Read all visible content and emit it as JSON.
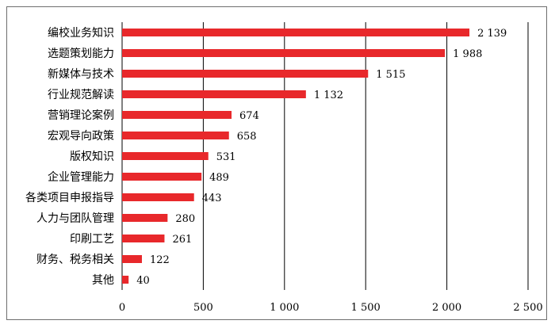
{
  "chart_data": {
    "type": "bar",
    "orientation": "horizontal",
    "title": "",
    "xlabel": "",
    "ylabel": "",
    "categories": [
      "编校业务知识",
      "选题策划能力",
      "新媒体与技术",
      "行业规范解读",
      "营销理论案例",
      "宏观导向政策",
      "版权知识",
      "企业管理能力",
      "各类项目申报指导",
      "人力与团队管理",
      "印刷工艺",
      "财务、税务相关",
      "其他"
    ],
    "values": [
      2139,
      1988,
      1515,
      1132,
      674,
      658,
      531,
      489,
      443,
      280,
      261,
      122,
      40
    ],
    "value_labels": [
      "2 139",
      "1 988",
      "1 515",
      "1 132",
      "674",
      "658",
      "531",
      "489",
      "443",
      "280",
      "261",
      "122",
      "40"
    ],
    "xlim": [
      0,
      2500
    ],
    "x_ticks": [
      0,
      500,
      1000,
      1500,
      2000,
      2500
    ],
    "x_tick_labels": [
      "0",
      "500",
      "1 000",
      "1 500",
      "2 000",
      "2 500"
    ],
    "grid": "vertical",
    "legend": "none",
    "bar_color": "#e8282b",
    "grid_color": "#000000"
  }
}
